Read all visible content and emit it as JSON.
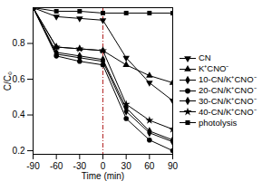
{
  "chart_data": {
    "type": "line",
    "x_label": "Time (min)",
    "y_label": "C/C₀",
    "x": [
      -90,
      -60,
      -30,
      0,
      30,
      60,
      90
    ],
    "xlim": [
      -90,
      90
    ],
    "xticks": [
      -90,
      -60,
      -30,
      0,
      30,
      60,
      90
    ],
    "ylim": [
      0.18,
      1.0
    ],
    "yticks": [
      0.2,
      0.4,
      0.6,
      0.8
    ],
    "legend": "right",
    "annotations": [
      {
        "x": 0,
        "line_style": "dashdot",
        "color": "#b22222"
      }
    ],
    "series": [
      {
        "name": "CN",
        "color": "#000000",
        "marker": "triangle-down",
        "values": [
          1.0,
          0.95,
          0.94,
          0.93,
          0.72,
          0.58,
          0.48
        ]
      },
      {
        "name": "K⁺CNO⁻",
        "color": "#000000",
        "marker": "triangle",
        "values": [
          1.0,
          0.78,
          0.77,
          0.76,
          0.68,
          0.62,
          0.58
        ]
      },
      {
        "name": "10-CN/K⁺CNO⁻",
        "color": "#000000",
        "marker": "diamond",
        "values": [
          1.0,
          0.74,
          0.72,
          0.7,
          0.42,
          0.3,
          0.25
        ]
      },
      {
        "name": "20-CN/K⁺CNO⁻",
        "color": "#000000",
        "marker": "circle",
        "values": [
          1.0,
          0.73,
          0.7,
          0.68,
          0.38,
          0.26,
          0.2
        ]
      },
      {
        "name": "30-CN/K⁺CNO⁻",
        "color": "#000000",
        "marker": "diamond",
        "values": [
          1.0,
          0.75,
          0.73,
          0.71,
          0.44,
          0.31,
          0.26
        ]
      },
      {
        "name": "40-CN/K⁺CNO⁻",
        "color": "#000000",
        "marker": "star",
        "values": [
          1.0,
          0.78,
          0.77,
          0.76,
          0.46,
          0.37,
          0.32
        ]
      },
      {
        "name": "photolysis",
        "color": "#000000",
        "marker": "square",
        "values": [
          1.0,
          0.98,
          0.98,
          0.97,
          0.97,
          0.97,
          0.97
        ]
      }
    ]
  }
}
